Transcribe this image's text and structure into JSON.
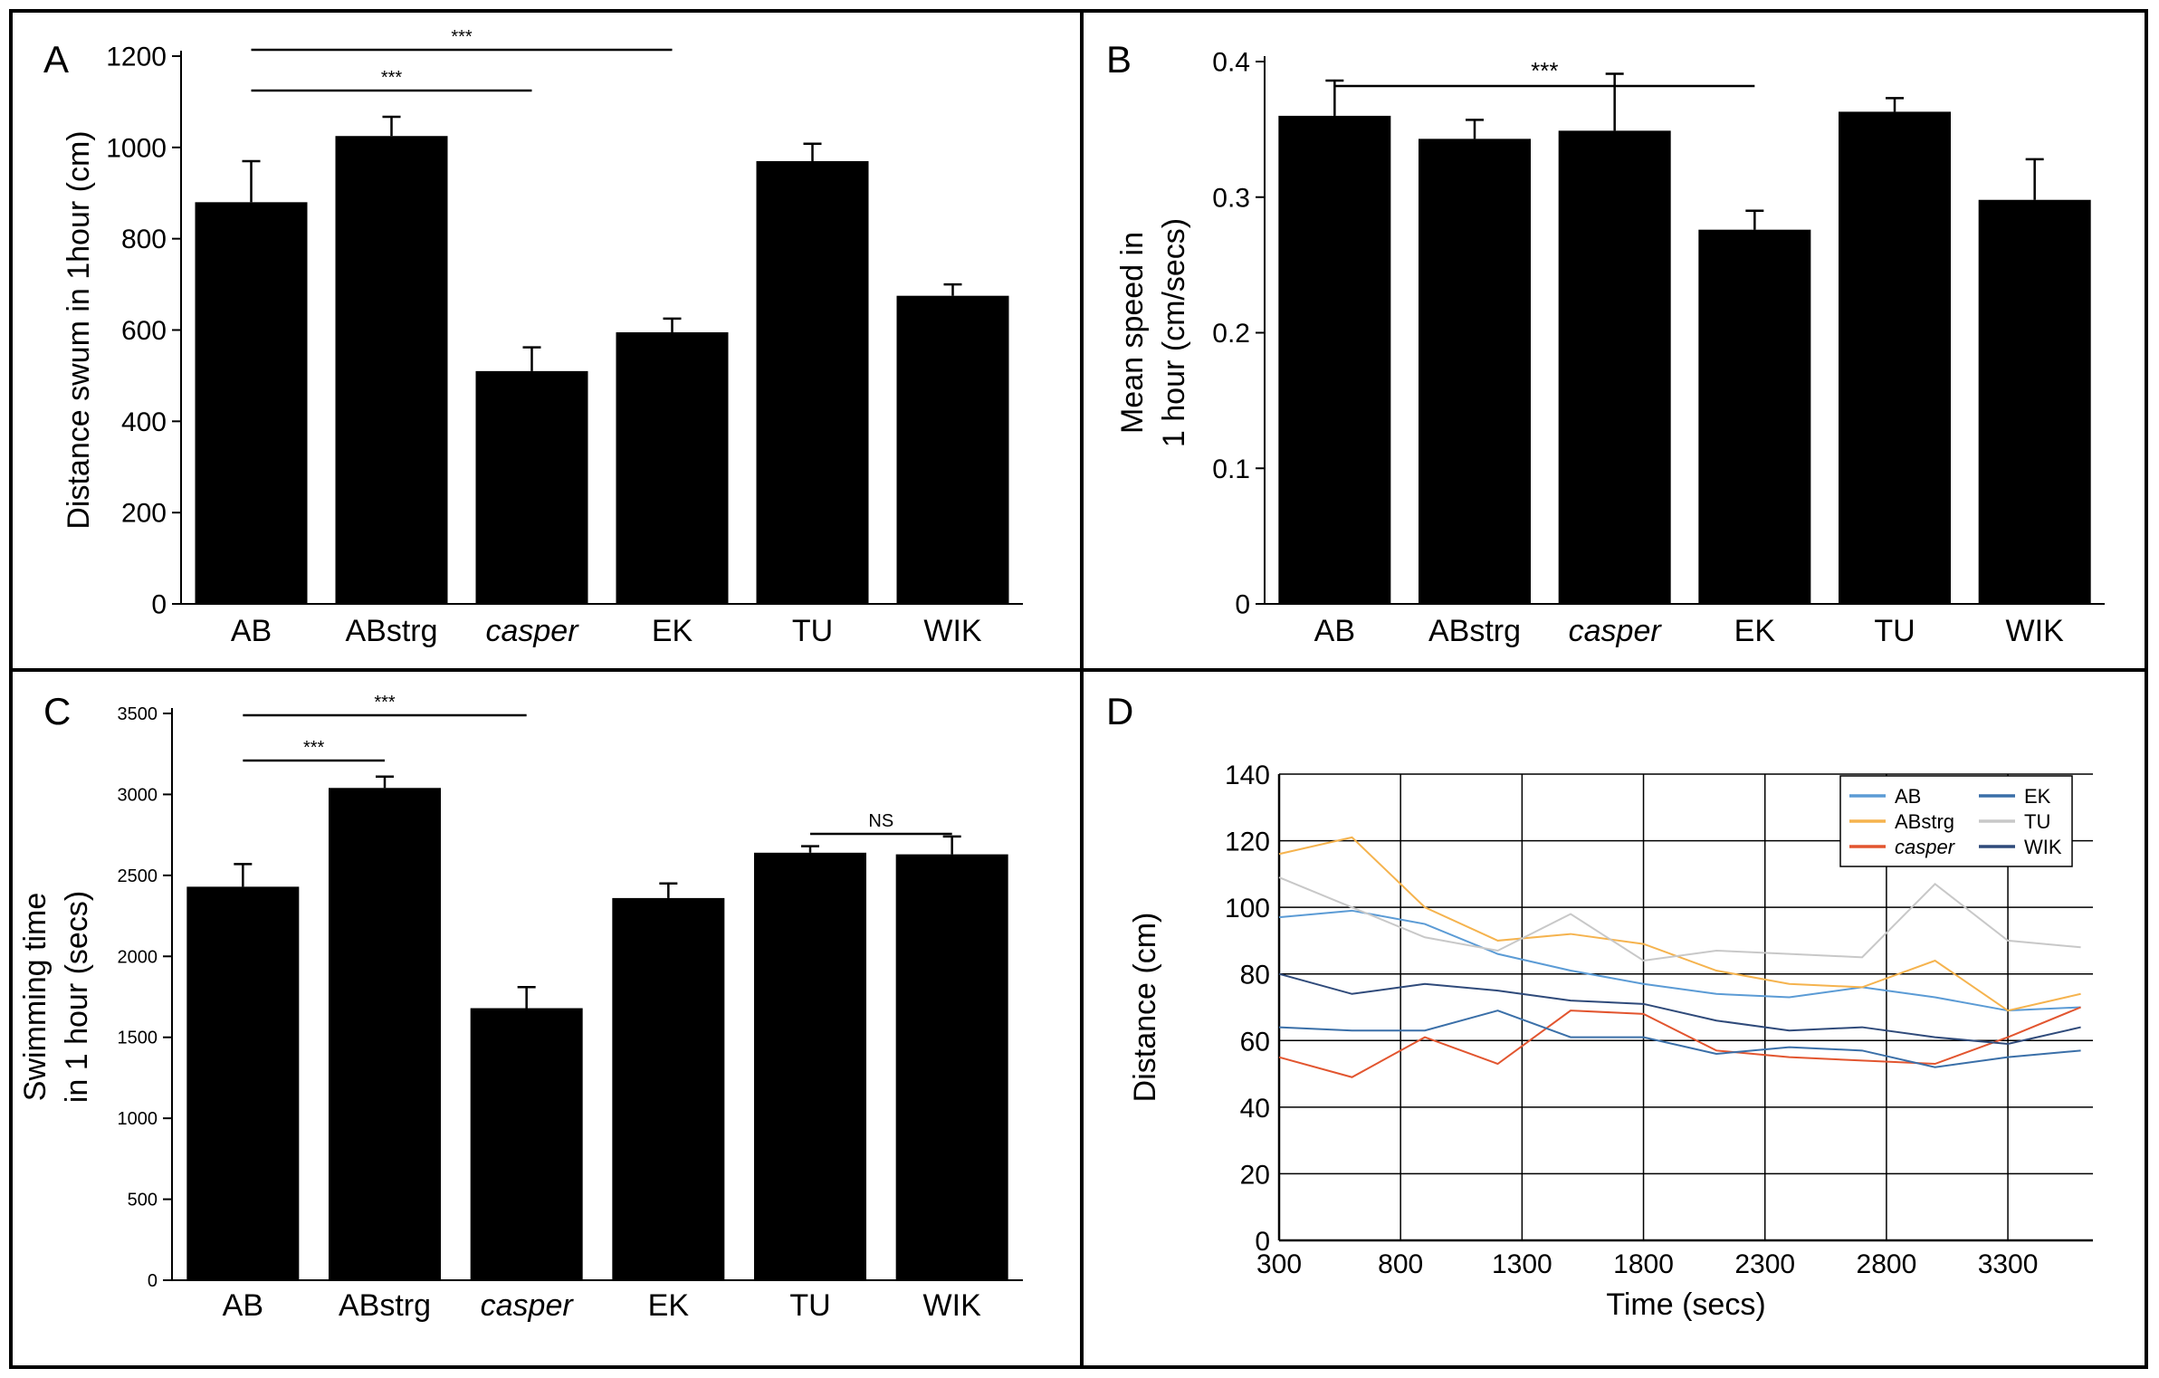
{
  "panels": {
    "A": {
      "label": "A"
    },
    "B": {
      "label": "B"
    },
    "C": {
      "label": "C"
    },
    "D": {
      "label": "D"
    }
  },
  "chart_data": [
    {
      "id": "A",
      "type": "bar",
      "categories": [
        "AB",
        "ABstrg",
        "casper",
        "EK",
        "TU",
        "WIK"
      ],
      "italic_categories": [
        "casper"
      ],
      "values": [
        880,
        1025,
        510,
        595,
        970,
        675
      ],
      "errors": [
        90,
        42,
        52,
        30,
        38,
        25
      ],
      "title": "",
      "xlabel": "",
      "ylabel": "Distance swum in 1hour (cm)",
      "ylim": [
        0,
        1200
      ],
      "yticks": [
        0,
        200,
        400,
        600,
        800,
        1000,
        1200
      ],
      "bar_color": "#000000",
      "significance": [
        {
          "from": "AB",
          "to": "EK",
          "label": "***"
        },
        {
          "from": "AB",
          "to": "casper",
          "label": "***"
        }
      ]
    },
    {
      "id": "B",
      "type": "bar",
      "categories": [
        "AB",
        "ABstrg",
        "casper",
        "EK",
        "TU",
        "WIK"
      ],
      "italic_categories": [
        "casper"
      ],
      "values": [
        0.36,
        0.343,
        0.349,
        0.276,
        0.363,
        0.298
      ],
      "errors": [
        0.026,
        0.014,
        0.042,
        0.014,
        0.01,
        0.03
      ],
      "title": "",
      "xlabel": "",
      "ylabel": [
        "Mean speed in",
        "1 hour (cm/secs)"
      ],
      "ylim": [
        0,
        0.4
      ],
      "yticks": [
        0,
        0.1,
        0.2,
        0.3,
        0.4
      ],
      "yticklabels": [
        "0",
        "0.1",
        "0.2",
        "0.3",
        "0.4"
      ],
      "bar_color": "#000000",
      "significance": [
        {
          "from": "AB",
          "to": "EK",
          "label": "***"
        }
      ]
    },
    {
      "id": "C",
      "type": "bar",
      "categories": [
        "AB",
        "ABstrg",
        "casper",
        "EK",
        "TU",
        "WIK"
      ],
      "italic_categories": [
        "casper"
      ],
      "values": [
        2430,
        3040,
        1680,
        2360,
        2640,
        2630
      ],
      "errors": [
        140,
        70,
        130,
        90,
        40,
        110
      ],
      "title": "",
      "xlabel": "",
      "ylabel": [
        "Swimming time",
        "in 1 hour (secs)"
      ],
      "ylim": [
        0,
        3500
      ],
      "yticks": [
        0,
        500,
        1000,
        1500,
        2000,
        2500,
        3000,
        3500
      ],
      "bar_color": "#000000",
      "significance": [
        {
          "from": "AB",
          "to": "casper",
          "label": "***"
        },
        {
          "from": "AB",
          "to": "ABstrg",
          "label": "***"
        },
        {
          "from": "TU",
          "to": "WIK",
          "label": "NS"
        }
      ]
    },
    {
      "id": "D",
      "type": "line",
      "x": [
        300,
        600,
        900,
        1200,
        1500,
        1800,
        2100,
        2400,
        2700,
        3000,
        3300,
        3600
      ],
      "series": [
        {
          "name": "AB",
          "color": "#5b9bd5",
          "italic": false,
          "values": [
            97,
            99,
            95,
            86,
            81,
            77,
            74,
            73,
            76,
            73,
            69,
            70
          ]
        },
        {
          "name": "ABstrg",
          "color": "#f5b34e",
          "italic": false,
          "values": [
            116,
            121,
            100,
            90,
            92,
            89,
            81,
            77,
            76,
            84,
            69,
            74
          ]
        },
        {
          "name": "casper",
          "color": "#e2552f",
          "italic": true,
          "values": [
            55,
            49,
            61,
            53,
            69,
            68,
            57,
            55,
            54,
            53,
            61,
            70
          ]
        },
        {
          "name": "EK",
          "color": "#3a6fa8",
          "italic": false,
          "values": [
            64,
            63,
            63,
            69,
            61,
            61,
            56,
            58,
            57,
            52,
            55,
            57
          ]
        },
        {
          "name": "TU",
          "color": "#c8c8c8",
          "italic": false,
          "values": [
            109,
            100,
            91,
            87,
            98,
            84,
            87,
            86,
            85,
            107,
            90,
            88
          ]
        },
        {
          "name": "WIK",
          "color": "#2f4a7a",
          "italic": false,
          "values": [
            80,
            74,
            77,
            75,
            72,
            71,
            66,
            63,
            64,
            61,
            59,
            64
          ]
        }
      ],
      "title": "",
      "xlabel": "Time (secs)",
      "ylabel": "Distance (cm)",
      "xlim": [
        300,
        3650
      ],
      "ylim": [
        0,
        140
      ],
      "xticks": [
        300,
        800,
        1300,
        1800,
        2300,
        2800,
        3300
      ],
      "yticks": [
        0,
        20,
        40,
        60,
        80,
        100,
        120,
        140
      ],
      "grid": true,
      "legend_position": "top-right",
      "legend_order": [
        "AB",
        "ABstrg",
        "casper",
        "EK",
        "TU",
        "WIK"
      ]
    }
  ]
}
